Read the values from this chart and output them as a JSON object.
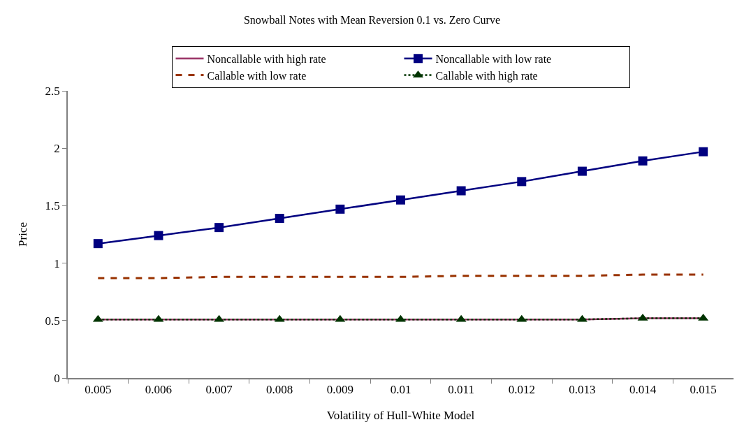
{
  "chart_data": {
    "type": "line",
    "title": "Snowball Notes with Mean Reversion 0.1 vs. Zero Curve",
    "xlabel": "Volatility of Hull-White Model",
    "ylabel": "Price",
    "categories": [
      "0.005",
      "0.006",
      "0.007",
      "0.008",
      "0.009",
      "0.01",
      "0.011",
      "0.012",
      "0.013",
      "0.014",
      "0.015"
    ],
    "series": [
      {
        "name": "Noncallable with high rate",
        "color": "#993366",
        "marker": "none",
        "line_style": "solid",
        "values": [
          0.51,
          0.51,
          0.51,
          0.51,
          0.51,
          0.51,
          0.51,
          0.51,
          0.51,
          0.52,
          0.52
        ]
      },
      {
        "name": "Noncallable with low rate",
        "color": "#000080",
        "marker": "square",
        "line_style": "solid",
        "values": [
          1.17,
          1.24,
          1.31,
          1.39,
          1.47,
          1.55,
          1.63,
          1.71,
          1.8,
          1.89,
          1.97
        ]
      },
      {
        "name": "Callable with low rate",
        "color": "#993300",
        "marker": "none",
        "line_style": "dashed",
        "values": [
          0.87,
          0.87,
          0.88,
          0.88,
          0.88,
          0.88,
          0.89,
          0.89,
          0.89,
          0.9,
          0.9
        ]
      },
      {
        "name": "Callable with high rate",
        "color": "#003300",
        "marker": "triangle",
        "line_style": "dotted",
        "values": [
          0.51,
          0.51,
          0.51,
          0.51,
          0.51,
          0.51,
          0.51,
          0.51,
          0.51,
          0.52,
          0.52
        ]
      }
    ],
    "ylim": [
      0,
      2.5
    ],
    "yticks": [
      0,
      0.5,
      1,
      1.5,
      2,
      2.5
    ],
    "grid": false,
    "legend": "top"
  }
}
